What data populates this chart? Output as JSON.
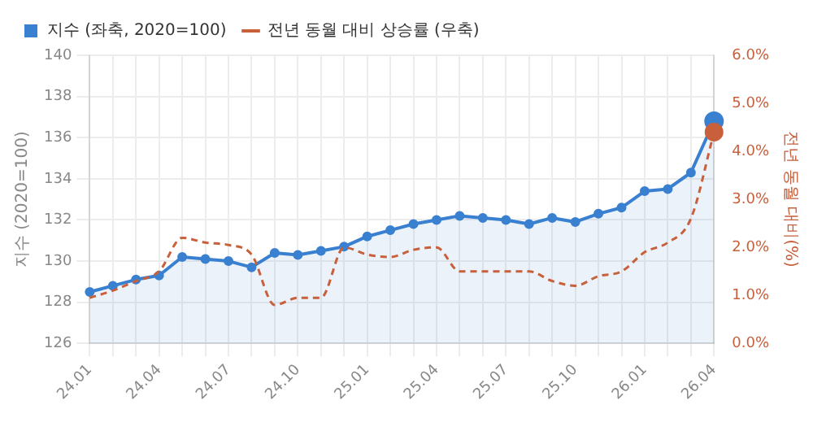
{
  "chart_data": {
    "type": "line",
    "ylabel": "지수 (2020=100)",
    "y2label": "전년 동월 대비(%)",
    "categories": [
      "24.01",
      null,
      null,
      "24.04",
      null,
      null,
      "24.07",
      null,
      null,
      "24.10",
      null,
      null,
      "25.01",
      null,
      null,
      "25.04",
      null,
      null,
      "25.07",
      null,
      null,
      "25.10",
      null,
      null,
      "26.01",
      null,
      null,
      "26.04"
    ],
    "series": [
      {
        "name": "지수 (좌축, 2020=100)",
        "type": "area",
        "color": "#3a80d0",
        "marker": "circle",
        "line_style": "solid",
        "values": [
          128.5,
          128.8,
          129.1,
          129.3,
          130.2,
          130.1,
          130.0,
          129.7,
          130.4,
          130.3,
          130.5,
          130.7,
          131.2,
          131.5,
          131.8,
          132.0,
          132.2,
          132.1,
          132.0,
          131.8,
          132.1,
          131.9,
          132.3,
          132.6,
          133.4,
          133.5,
          134.3,
          136.8
        ]
      },
      {
        "name": "전년 동월 대비 상승률 (우축)",
        "axis": "y2",
        "color": "#c8603c",
        "marker": "none",
        "line_style": "dashed",
        "values": [
          0.95,
          1.1,
          1.3,
          1.5,
          2.2,
          2.1,
          2.05,
          1.85,
          0.8,
          0.95,
          0.95,
          2.0,
          1.85,
          1.8,
          1.95,
          2.0,
          1.5,
          1.5,
          1.5,
          1.5,
          1.3,
          1.2,
          1.4,
          1.5,
          1.9,
          2.1,
          2.6,
          4.4
        ]
      }
    ],
    "ylim": [
      126,
      140
    ],
    "yticks": [
      126,
      128,
      130,
      132,
      134,
      136,
      138,
      140
    ],
    "y2lim": [
      0,
      6
    ],
    "y2ticks": [
      {
        "value": 0,
        "label": "0.0%"
      },
      {
        "value": 1,
        "label": "1.0%"
      },
      {
        "value": 2,
        "label": "2.0%"
      },
      {
        "value": 3,
        "label": "3.0%"
      },
      {
        "value": 4,
        "label": "4.0%"
      },
      {
        "value": 5,
        "label": "5.0%"
      },
      {
        "value": 6,
        "label": "6.0%"
      }
    ],
    "grid": true,
    "legend": "top left"
  }
}
